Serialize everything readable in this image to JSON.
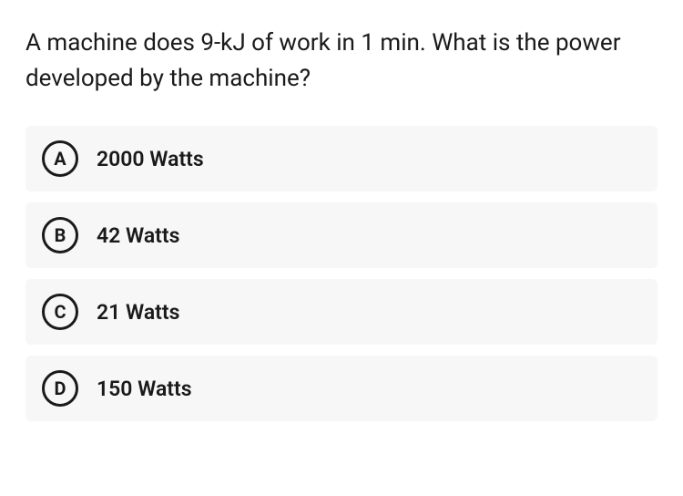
{
  "question": {
    "text": "A machine does 9-kJ of work in 1 min. What is the power developed by the machine?",
    "fontsize": 26,
    "color": "#1a1a1a"
  },
  "options": [
    {
      "letter": "A",
      "text": "2000 Watts"
    },
    {
      "letter": "B",
      "text": "42 Watts"
    },
    {
      "letter": "C",
      "text": "21 Watts"
    },
    {
      "letter": "D",
      "text": "150 Watts"
    }
  ],
  "styling": {
    "option_background": "#f7f7f8",
    "option_border_radius": 6,
    "letter_circle_border": "#1a1a1a",
    "letter_circle_border_width": 3,
    "letter_fontsize": 20,
    "option_text_fontsize": 23,
    "option_text_weight": 600,
    "page_background": "#ffffff"
  }
}
